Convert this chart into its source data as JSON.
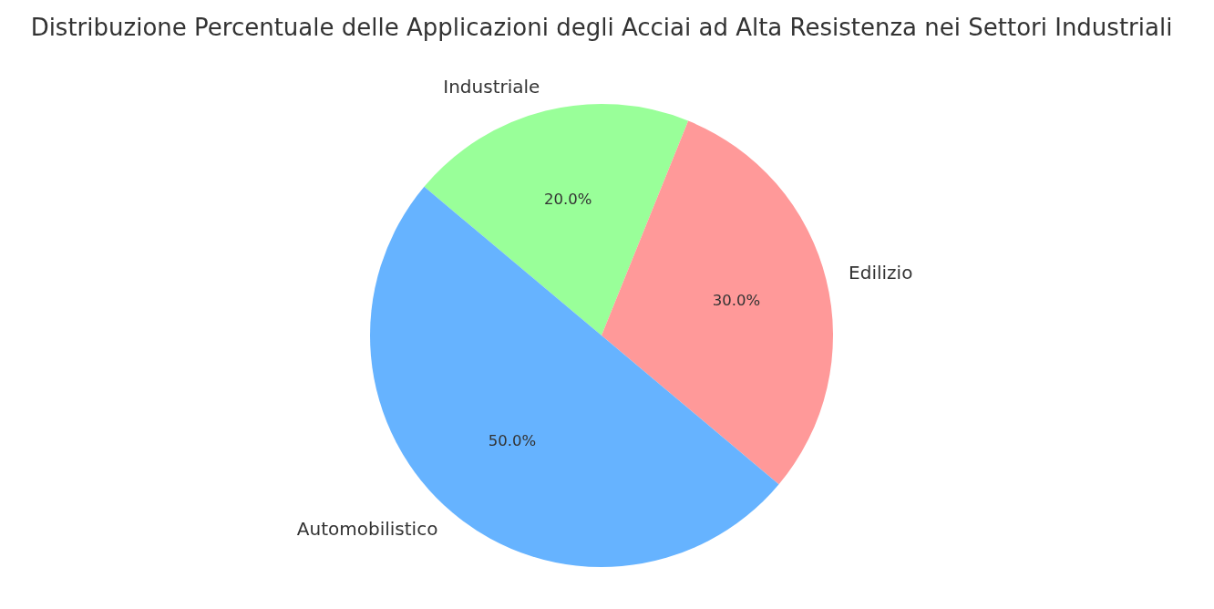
{
  "chart_data": {
    "type": "pie",
    "title": "Distribuzione Percentuale delle Applicazioni degli Acciai ad Alta Resistenza nei Settori Industriali",
    "categories": [
      "Industriale",
      "Edilizio",
      "Automobilistico"
    ],
    "values": [
      20,
      30,
      50
    ],
    "colors": [
      "#99ff99",
      "#ff9999",
      "#66b3ff"
    ],
    "value_labels": [
      "20.0%",
      "30.0%",
      "50.0%"
    ],
    "legend": false
  }
}
